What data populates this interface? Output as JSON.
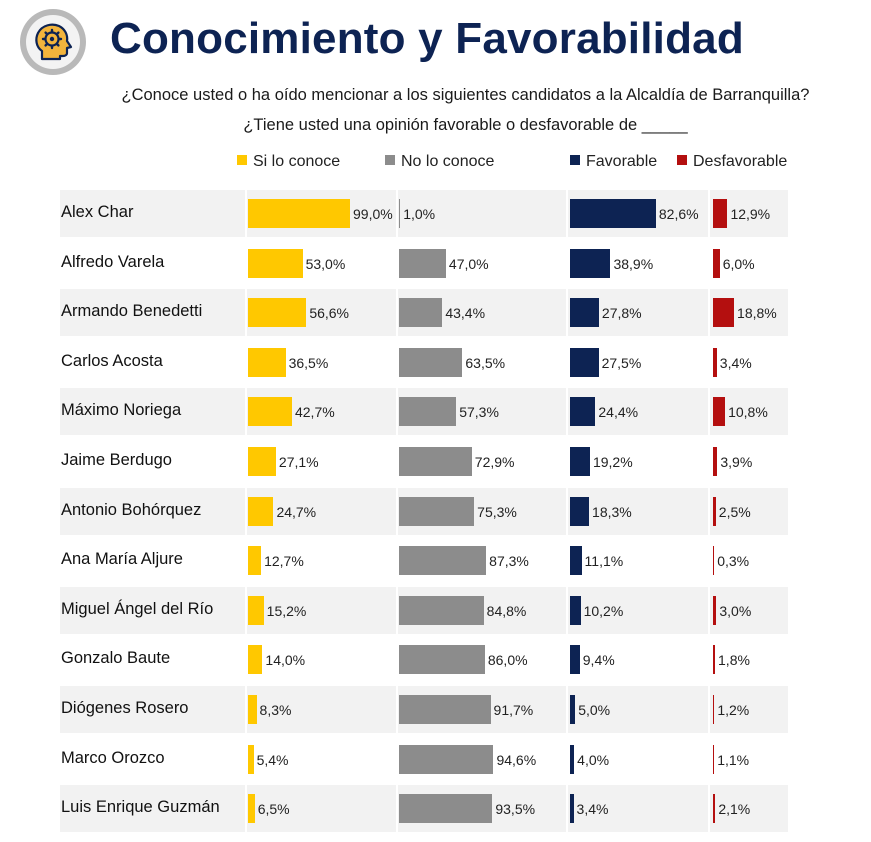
{
  "title": "Conocimiento y Favorabilidad",
  "subtitle_1": "¿Conoce usted o ha oído mencionar a los siguientes candidatos a la Alcaldía de Barranquilla?",
  "subtitle_2": "¿Tiene usted una opinión favorable o desfavorable de _____",
  "legend": {
    "si": "Si lo conoce",
    "no": "No lo conoce",
    "fav": "Favorable",
    "desfav": "Desfavorable"
  },
  "colors": {
    "si": "#ffc800",
    "no": "#8c8c8c",
    "fav": "#0d2353",
    "desfav": "#b40f0f",
    "title": "#0d2353",
    "row_alt": "#f2f2f2"
  },
  "logo_icon": "head-gear-icon",
  "chart_data": {
    "type": "bar",
    "orientation": "horizontal",
    "categories": [
      "Alex Char",
      "Alfredo Varela",
      "Armando Benedetti",
      "Carlos Acosta",
      "Máximo Noriega",
      "Jaime Berdugo",
      "Antonio Bohórquez",
      "Ana María Aljure",
      "Miguel Ángel del Río",
      "Gonzalo Baute",
      "Diógenes Rosero",
      "Marco Orozco",
      "Luis Enrique Guzmán"
    ],
    "series": [
      {
        "name": "Si lo conoce",
        "values": [
          99.0,
          53.0,
          56.6,
          36.5,
          42.7,
          27.1,
          24.7,
          12.7,
          15.2,
          14.0,
          8.3,
          5.4,
          6.5
        ],
        "labels": [
          "99,0%",
          "53,0%",
          "56,6%",
          "36,5%",
          "42,7%",
          "27,1%",
          "24,7%",
          "12,7%",
          "15,2%",
          "14,0%",
          "8,3%",
          "5,4%",
          "6,5%"
        ]
      },
      {
        "name": "No lo conoce",
        "values": [
          1.0,
          47.0,
          43.4,
          63.5,
          57.3,
          72.9,
          75.3,
          87.3,
          84.8,
          86.0,
          91.7,
          94.6,
          93.5
        ],
        "labels": [
          "1,0%",
          "47,0%",
          "43,4%",
          "63,5%",
          "57,3%",
          "72,9%",
          "75,3%",
          "87,3%",
          "84,8%",
          "86,0%",
          "91,7%",
          "94,6%",
          "93,5%"
        ]
      },
      {
        "name": "Favorable",
        "values": [
          82.6,
          38.9,
          27.8,
          27.5,
          24.4,
          19.2,
          18.3,
          11.1,
          10.2,
          9.4,
          5.0,
          4.0,
          3.4
        ],
        "labels": [
          "82,6%",
          "38,9%",
          "27,8%",
          "27,5%",
          "24,4%",
          "19,2%",
          "18,3%",
          "11,1%",
          "10,2%",
          "9,4%",
          "5,0%",
          "4,0%",
          "3,4%"
        ]
      },
      {
        "name": "Desfavorable",
        "values": [
          12.9,
          6.0,
          18.8,
          3.4,
          10.8,
          3.9,
          2.5,
          0.3,
          3.0,
          1.8,
          1.2,
          1.1,
          2.1
        ],
        "labels": [
          "12,9%",
          "6,0%",
          "18,8%",
          "3,4%",
          "10,8%",
          "3,9%",
          "2,5%",
          "0,3%",
          "3,0%",
          "1,8%",
          "1,2%",
          "1,1%",
          "2,1%"
        ]
      }
    ],
    "xlim": [
      0,
      100
    ],
    "grid": false,
    "legend_position": "top"
  }
}
